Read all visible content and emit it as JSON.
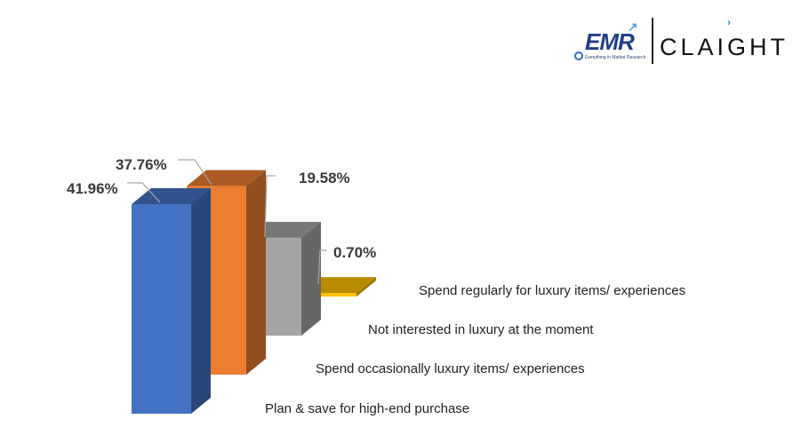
{
  "logo": {
    "emr": "EMR",
    "emr_tagline": "Everything in Market Research",
    "brand": "CLAIGHT"
  },
  "chart_data": {
    "type": "bar",
    "style": "3d-column",
    "title": "",
    "xlabel": "",
    "ylabel": "",
    "ylim": [
      0,
      45
    ],
    "grid": false,
    "legend": "none",
    "categories": [
      "Plan & save for high-end purchase",
      "Spend occasionally luxury items/ experiences",
      "Not interested in luxury at the moment",
      "Spend regularly for luxury items/ experiences"
    ],
    "values": [
      41.96,
      37.76,
      19.58,
      0.7
    ],
    "value_labels": [
      "41.96%",
      "37.76%",
      "19.58%",
      "0.70%"
    ],
    "colors": [
      "#4472c4",
      "#ed7d31",
      "#a5a5a5",
      "#ffc000"
    ]
  }
}
